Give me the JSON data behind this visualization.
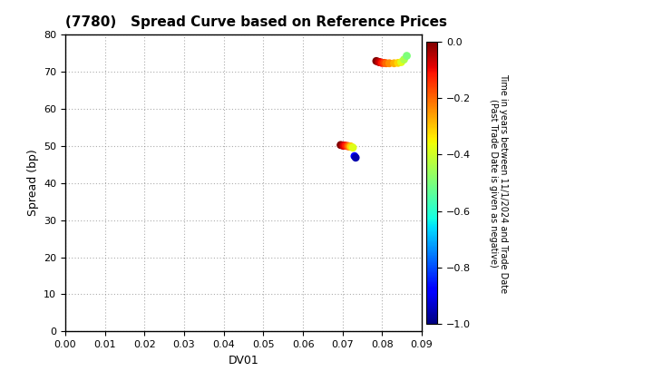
{
  "title": "(7780)   Spread Curve based on Reference Prices",
  "xlabel": "DV01",
  "ylabel": "Spread (bp)",
  "xlim": [
    0.0,
    0.09
  ],
  "ylim": [
    0,
    80
  ],
  "xticks": [
    0.0,
    0.01,
    0.02,
    0.03,
    0.04,
    0.05,
    0.06,
    0.07,
    0.08,
    0.09
  ],
  "yticks": [
    0,
    10,
    20,
    30,
    40,
    50,
    60,
    70,
    80
  ],
  "colorbar_label_line1": "Time in years between 11/1/2024 and Trade Date",
  "colorbar_label_line2": "(Past Trade Date is given as negative)",
  "clim": [
    -1.0,
    0.0
  ],
  "cluster1_dv01": [
    0.0695,
    0.07,
    0.0702,
    0.0705,
    0.0708,
    0.0712,
    0.0715,
    0.0718,
    0.072,
    0.0722,
    0.0726,
    0.073,
    0.0733
  ],
  "cluster1_spread": [
    50.2,
    50.1,
    50.0,
    50.0,
    50.0,
    49.9,
    49.9,
    49.8,
    49.8,
    49.7,
    49.5,
    47.2,
    46.8
  ],
  "cluster1_time": [
    0.0,
    -0.03,
    -0.06,
    -0.09,
    -0.12,
    -0.16,
    -0.2,
    -0.24,
    -0.28,
    -0.32,
    -0.38,
    -0.88,
    -0.96
  ],
  "cluster2_dv01": [
    0.0785,
    0.079,
    0.0793,
    0.0797,
    0.08,
    0.0805,
    0.081,
    0.0818,
    0.083,
    0.084,
    0.0848,
    0.0855,
    0.0862
  ],
  "cluster2_spread": [
    72.8,
    72.6,
    72.5,
    72.4,
    72.3,
    72.3,
    72.2,
    72.2,
    72.2,
    72.3,
    72.5,
    73.2,
    74.2
  ],
  "cluster2_time": [
    0.0,
    -0.03,
    -0.06,
    -0.09,
    -0.12,
    -0.16,
    -0.2,
    -0.24,
    -0.28,
    -0.32,
    -0.38,
    -0.44,
    -0.5
  ],
  "background_color": "#ffffff",
  "grid_color": "#888888",
  "scatter_size": 40
}
